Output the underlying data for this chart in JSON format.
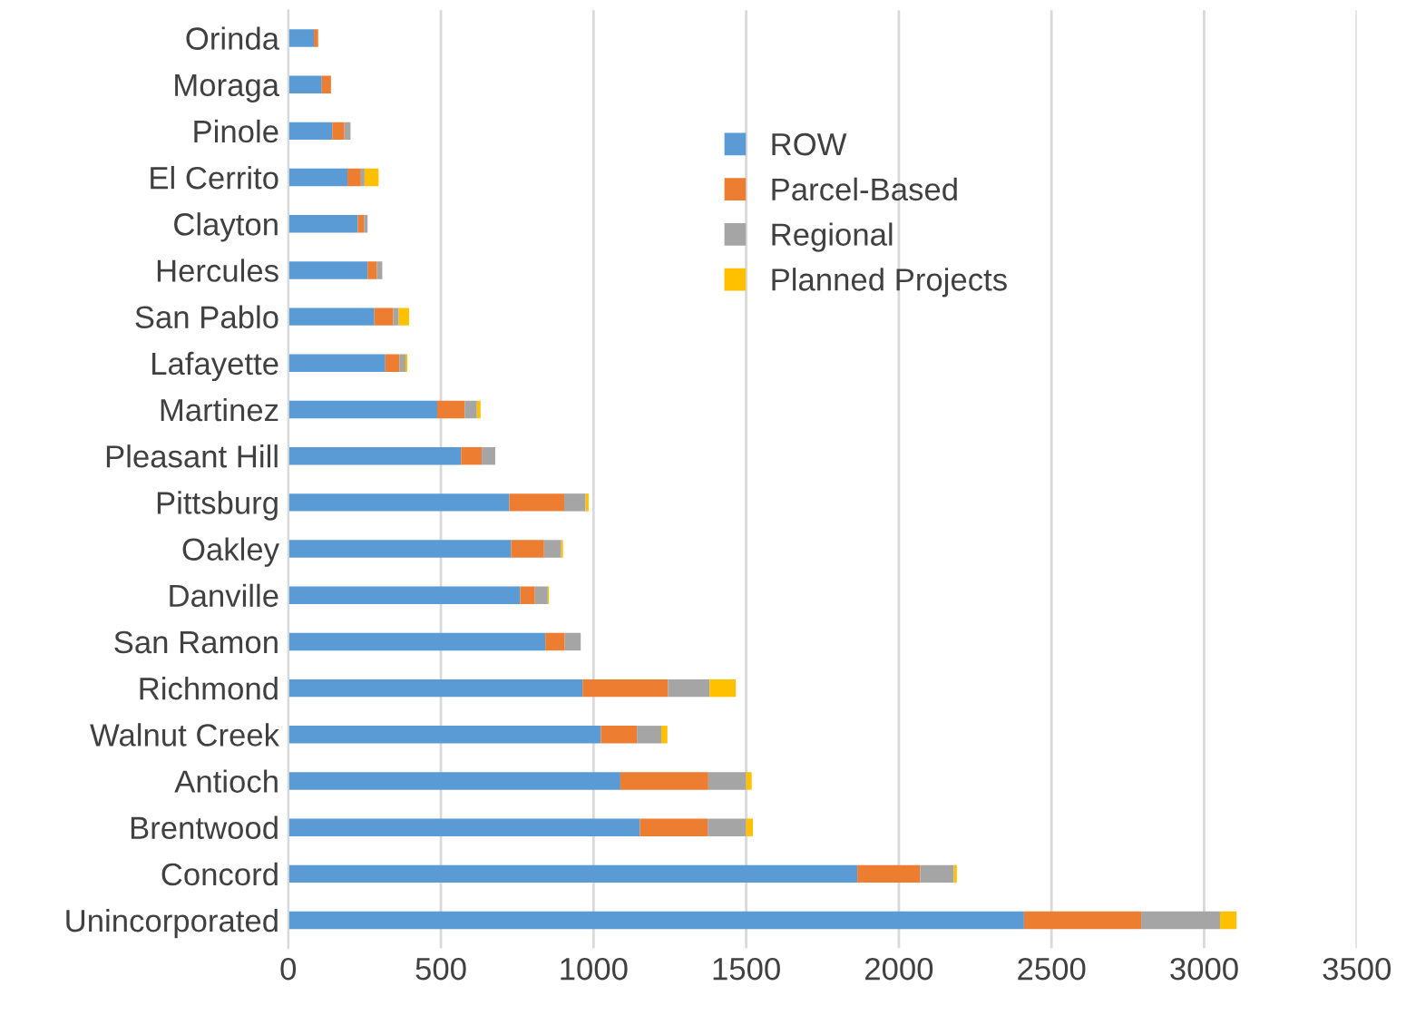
{
  "chart_data": {
    "type": "bar",
    "orientation": "horizontal",
    "stacked": true,
    "categories": [
      "Orinda",
      "Moraga",
      "Pinole",
      "El Cerrito",
      "Clayton",
      "Hercules",
      "San Pablo",
      "Lafayette",
      "Martinez",
      "Pleasant Hill",
      "Pittsburg",
      "Oakley",
      "Danville",
      "San Ramon",
      "Richmond",
      "Walnut Creek",
      "Antioch",
      "Brentwood",
      "Concord",
      "Unincorporated"
    ],
    "series": [
      {
        "name": "ROW",
        "color": "#5b9bd5",
        "values": [
          84,
          110,
          144,
          194,
          228,
          260,
          282,
          318,
          488,
          566,
          724,
          730,
          760,
          842,
          964,
          1024,
          1088,
          1152,
          1864,
          2410
        ]
      },
      {
        "name": "Parcel-Based",
        "color": "#ed7d31",
        "values": [
          14,
          30,
          40,
          44,
          20,
          30,
          62,
          46,
          90,
          68,
          180,
          108,
          48,
          64,
          280,
          118,
          288,
          222,
          206,
          384
        ]
      },
      {
        "name": "Regional",
        "color": "#a5a5a5",
        "values": [
          0,
          0,
          20,
          12,
          12,
          18,
          18,
          20,
          40,
          44,
          70,
          56,
          42,
          52,
          136,
          80,
          124,
          126,
          110,
          258
        ]
      },
      {
        "name": "Planned Projects",
        "color": "#ffc000",
        "values": [
          0,
          0,
          0,
          46,
          0,
          0,
          34,
          6,
          12,
          0,
          10,
          6,
          4,
          0,
          86,
          20,
          18,
          22,
          10,
          54
        ]
      }
    ],
    "xlim": [
      0,
      3500
    ],
    "xticks": [
      0,
      500,
      1000,
      1500,
      2000,
      2500,
      3000,
      3500
    ],
    "grid": "x",
    "legend": "top right"
  }
}
